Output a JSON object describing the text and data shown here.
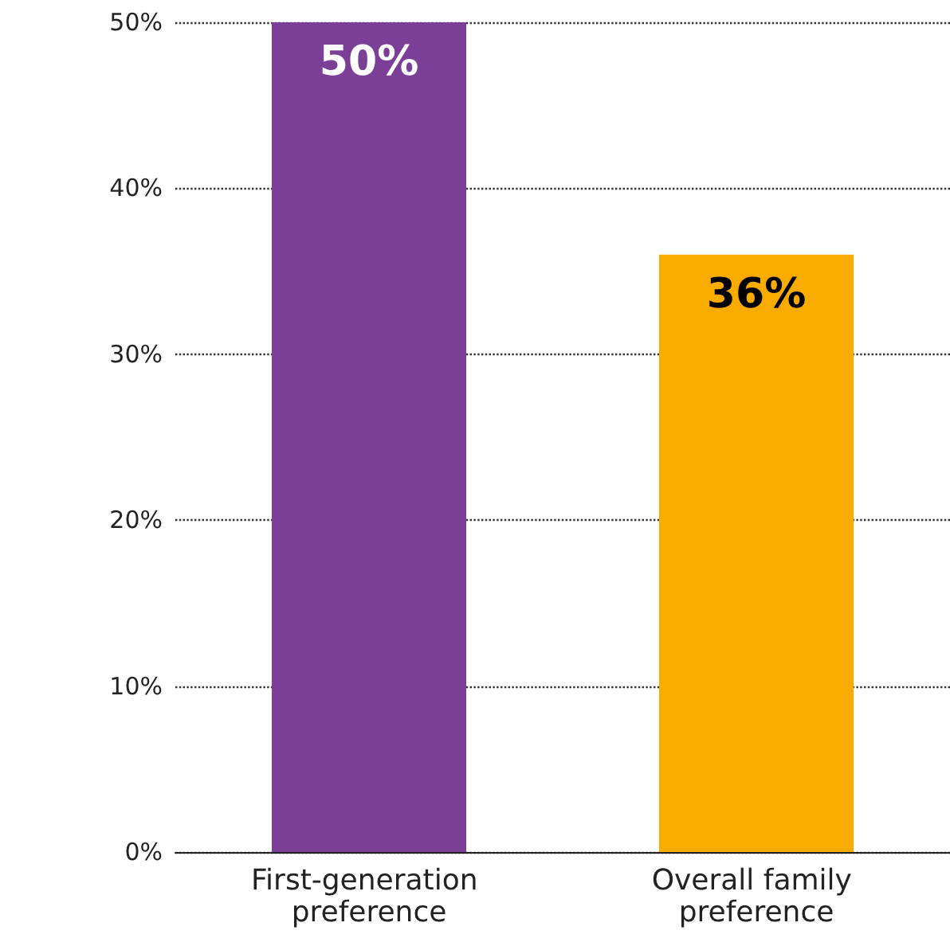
{
  "chart_data": {
    "type": "bar",
    "categories": [
      "First-generation preference",
      "Overall family preference"
    ],
    "values": [
      50,
      36
    ],
    "colors": [
      "#7b3f98",
      "#f9ab00"
    ],
    "value_labels": [
      "50%",
      "36%"
    ],
    "ylim": [
      0,
      50
    ],
    "yticks": [
      {
        "value": 0,
        "label": "0%"
      },
      {
        "value": 10,
        "label": "10%"
      },
      {
        "value": 20,
        "label": "20%"
      },
      {
        "value": 30,
        "label": "30%"
      },
      {
        "value": 40,
        "label": "40%"
      },
      {
        "value": 50,
        "label": "50%"
      }
    ],
    "grid": "y"
  }
}
